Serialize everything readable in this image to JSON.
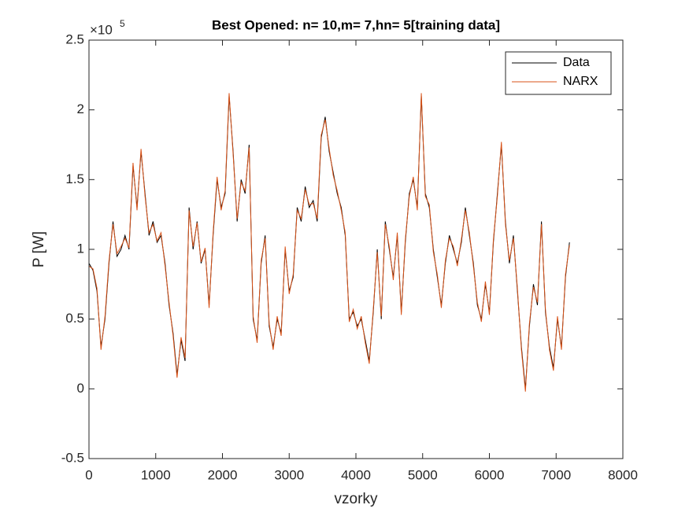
{
  "chart_data": {
    "type": "line",
    "title": "Best Opened: n= 10,m= 7,hn= 5[training data]",
    "x_label": "vzorky",
    "y_label": "P [W]",
    "y_exponent_base": "×10",
    "y_exponent": "5",
    "xlim": [
      0,
      8000
    ],
    "xticks": [
      0,
      1000,
      2000,
      3000,
      4000,
      5000,
      6000,
      7000,
      8000
    ],
    "ylim": [
      -0.5,
      2.5
    ],
    "yticks": [
      -0.5,
      0,
      0.5,
      1,
      1.5,
      2,
      2.5
    ],
    "legend": "northeast",
    "grid": false,
    "x": [
      0,
      60,
      120,
      180,
      240,
      300,
      360,
      420,
      480,
      540,
      600,
      660,
      720,
      780,
      840,
      900,
      960,
      1020,
      1080,
      1140,
      1200,
      1260,
      1320,
      1380,
      1440,
      1500,
      1560,
      1620,
      1680,
      1740,
      1800,
      1860,
      1920,
      1980,
      2040,
      2100,
      2160,
      2220,
      2280,
      2340,
      2400,
      2460,
      2520,
      2580,
      2640,
      2700,
      2760,
      2820,
      2880,
      2940,
      3000,
      3060,
      3120,
      3180,
      3240,
      3300,
      3360,
      3420,
      3480,
      3540,
      3600,
      3660,
      3720,
      3780,
      3840,
      3900,
      3960,
      4020,
      4080,
      4140,
      4200,
      4260,
      4320,
      4380,
      4440,
      4500,
      4560,
      4620,
      4680,
      4740,
      4800,
      4860,
      4920,
      4980,
      5040,
      5100,
      5160,
      5220,
      5280,
      5340,
      5400,
      5460,
      5520,
      5580,
      5640,
      5700,
      5760,
      5820,
      5880,
      5940,
      6000,
      6060,
      6120,
      6180,
      6240,
      6300,
      6360,
      6420,
      6480,
      6540,
      6600,
      6660,
      6720,
      6780,
      6840,
      6900,
      6960,
      7020,
      7080,
      7140,
      7200
    ],
    "series": [
      {
        "name": "Data",
        "color": "#000000",
        "values": [
          0.9,
          0.85,
          0.7,
          0.3,
          0.5,
          0.9,
          1.2,
          0.95,
          1.0,
          1.1,
          1.0,
          1.6,
          1.3,
          1.7,
          1.4,
          1.1,
          1.2,
          1.05,
          1.1,
          0.9,
          0.6,
          0.4,
          0.1,
          0.35,
          0.2,
          1.3,
          1.0,
          1.2,
          0.9,
          1.0,
          0.6,
          1.1,
          1.5,
          1.3,
          1.4,
          2.1,
          1.7,
          1.2,
          1.5,
          1.4,
          1.75,
          0.5,
          0.35,
          0.9,
          1.1,
          0.45,
          0.3,
          0.5,
          0.4,
          1.0,
          0.7,
          0.8,
          1.3,
          1.2,
          1.45,
          1.3,
          1.35,
          1.2,
          1.8,
          1.95,
          1.7,
          1.55,
          1.4,
          1.3,
          1.1,
          0.5,
          0.55,
          0.45,
          0.5,
          0.35,
          0.2,
          0.55,
          1.0,
          0.5,
          1.2,
          1.0,
          0.8,
          1.1,
          0.55,
          1.05,
          1.4,
          1.5,
          1.3,
          2.1,
          1.4,
          1.3,
          1.0,
          0.8,
          0.6,
          0.9,
          1.1,
          1.0,
          0.9,
          1.05,
          1.3,
          1.1,
          0.9,
          0.6,
          0.5,
          0.75,
          0.55,
          1.05,
          1.4,
          1.75,
          1.2,
          0.9,
          1.1,
          0.7,
          0.3,
          0.0,
          0.45,
          0.75,
          0.6,
          1.2,
          0.55,
          0.3,
          0.15,
          0.5,
          0.3,
          0.8,
          1.05
        ]
      },
      {
        "name": "NARX",
        "color": "#D95319",
        "values": [
          0.88,
          0.86,
          0.72,
          0.28,
          0.52,
          0.92,
          1.18,
          0.97,
          1.02,
          1.08,
          1.01,
          1.62,
          1.28,
          1.72,
          1.38,
          1.12,
          1.18,
          1.06,
          1.12,
          0.88,
          0.62,
          0.38,
          0.08,
          0.37,
          0.22,
          1.28,
          1.02,
          1.19,
          0.91,
          1.01,
          0.58,
          1.12,
          1.52,
          1.28,
          1.42,
          2.12,
          1.68,
          1.22,
          1.48,
          1.42,
          1.73,
          0.52,
          0.33,
          0.92,
          1.08,
          0.47,
          0.28,
          0.52,
          0.38,
          1.02,
          0.68,
          0.82,
          1.28,
          1.22,
          1.43,
          1.32,
          1.33,
          1.22,
          1.82,
          1.93,
          1.72,
          1.53,
          1.42,
          1.28,
          1.12,
          0.48,
          0.57,
          0.43,
          0.52,
          0.33,
          0.18,
          0.57,
          0.98,
          0.52,
          1.18,
          1.02,
          0.78,
          1.12,
          0.53,
          1.07,
          1.38,
          1.52,
          1.28,
          2.12,
          1.38,
          1.32,
          0.98,
          0.82,
          0.58,
          0.92,
          1.08,
          1.02,
          0.88,
          1.07,
          1.28,
          1.12,
          0.88,
          0.62,
          0.48,
          0.77,
          0.53,
          1.07,
          1.38,
          1.77,
          1.18,
          0.92,
          1.08,
          0.72,
          0.28,
          -0.02,
          0.47,
          0.73,
          0.62,
          1.18,
          0.57,
          0.28,
          0.13,
          0.52,
          0.28,
          0.82,
          1.03
        ]
      }
    ]
  }
}
